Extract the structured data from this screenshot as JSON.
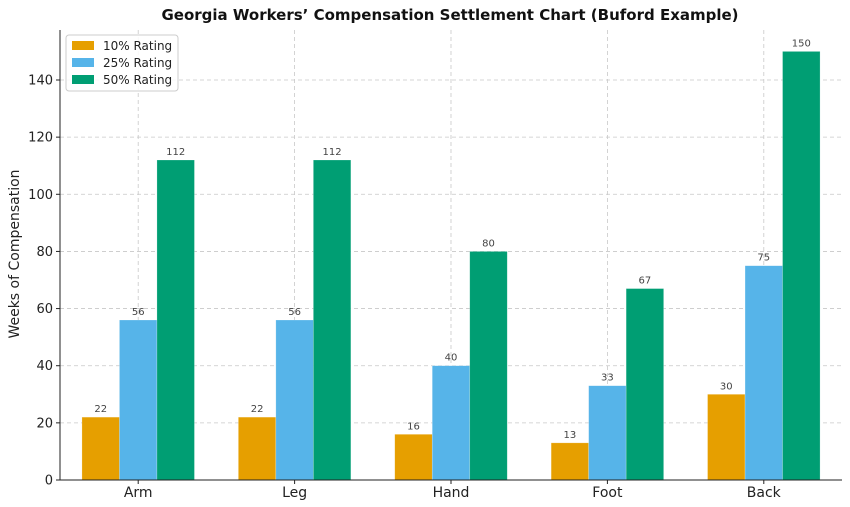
{
  "chart_data": {
    "type": "bar",
    "title": "Georgia Workers’ Compensation Settlement Chart (Buford Example)",
    "xlabel": "",
    "ylabel": "Weeks of Compensation",
    "categories": [
      "Arm",
      "Leg",
      "Hand",
      "Foot",
      "Back"
    ],
    "series": [
      {
        "name": "10% Rating",
        "color": "#E69F00",
        "values": [
          22,
          22,
          16,
          13,
          30
        ]
      },
      {
        "name": "25% Rating",
        "color": "#56B4E9",
        "values": [
          56,
          56,
          40,
          33,
          75
        ]
      },
      {
        "name": "50% Rating",
        "color": "#009E73",
        "values": [
          112,
          112,
          80,
          67,
          150
        ]
      }
    ],
    "ylim": [
      0,
      157.5
    ],
    "yticks": [
      0,
      20,
      40,
      60,
      80,
      100,
      120,
      140
    ],
    "grid": true,
    "legend": "top-left"
  }
}
